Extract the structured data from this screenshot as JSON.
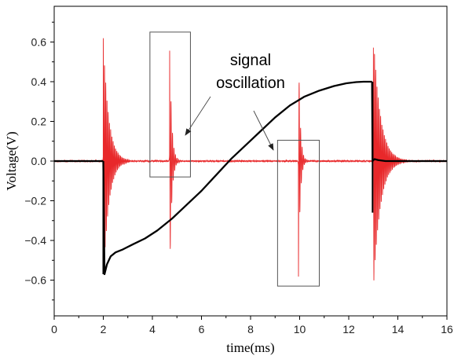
{
  "chart_data": {
    "type": "line",
    "xlabel": "time(ms)",
    "ylabel": "Voltage(V)",
    "xlim": [
      0,
      16
    ],
    "ylim": [
      -0.78,
      0.78
    ],
    "xticks": [
      0,
      2,
      4,
      6,
      8,
      10,
      12,
      14,
      16
    ],
    "yticks": [
      -0.6,
      -0.4,
      -0.2,
      0.0,
      0.2,
      0.4,
      0.6
    ],
    "xtick_labels": [
      "0",
      "2",
      "4",
      "6",
      "8",
      "10",
      "12",
      "14",
      "16"
    ],
    "ytick_labels": [
      "−0.6",
      "−0.4",
      "−0.2",
      "0.0",
      "0.2",
      "0.4",
      "0.6"
    ],
    "grid": false,
    "annotation": {
      "lines": [
        "signal",
        "oscillation"
      ],
      "boxes": [
        {
          "x": [
            3.9,
            5.55
          ],
          "y": [
            -0.08,
            0.65
          ]
        },
        {
          "x": [
            9.1,
            10.8
          ],
          "y": [
            -0.63,
            0.105
          ]
        }
      ]
    },
    "series": [
      {
        "color": "#000000",
        "segments": [
          {
            "x": [
              0,
              2.0
            ],
            "y": [
              0,
              0
            ]
          },
          {
            "x": [
              2.0,
              2.05,
              2.15,
              2.3,
              2.5,
              2.8,
              3.2,
              3.7,
              4.2,
              4.8,
              5.4,
              6.0,
              6.6,
              7.2,
              7.8,
              8.4,
              9.0,
              9.6,
              10.2,
              10.8,
              11.4,
              11.9,
              12.3,
              12.6,
              12.95
            ],
            "y": [
              0,
              -0.57,
              -0.52,
              -0.48,
              -0.46,
              -0.445,
              -0.42,
              -0.39,
              -0.35,
              -0.29,
              -0.22,
              -0.15,
              -0.07,
              0.01,
              0.08,
              0.15,
              0.22,
              0.28,
              0.325,
              0.355,
              0.378,
              0.392,
              0.398,
              0.4,
              0.4
            ]
          },
          {
            "x": [
              12.95,
              12.97,
              13.05,
              13.2,
              13.5,
              14.0,
              14.5,
              16
            ],
            "y": [
              0.4,
              0.0,
              0.01,
              0.005,
              0.0,
              0.0,
              0.0,
              0.0
            ]
          }
        ]
      },
      {
        "color": "#e8282a",
        "baseline": 0.0,
        "baseline_noise": 0.003,
        "bursts": [
          {
            "t0": 2.0,
            "amp": 0.62,
            "decay_ms": 0.22,
            "duration_ms": 1.1,
            "period_ms": 0.05
          },
          {
            "t0": 4.7,
            "amp": 0.64,
            "decay_ms": 0.08,
            "duration_ms": 0.7,
            "period_ms": 0.06
          },
          {
            "t0": 9.95,
            "amp": -0.61,
            "decay_ms": 0.07,
            "duration_ms": 0.8,
            "period_ms": 0.06
          },
          {
            "t0": 13.0,
            "amp": 0.66,
            "decay_ms": 0.28,
            "duration_ms": 1.4,
            "period_ms": 0.05
          }
        ]
      }
    ]
  }
}
